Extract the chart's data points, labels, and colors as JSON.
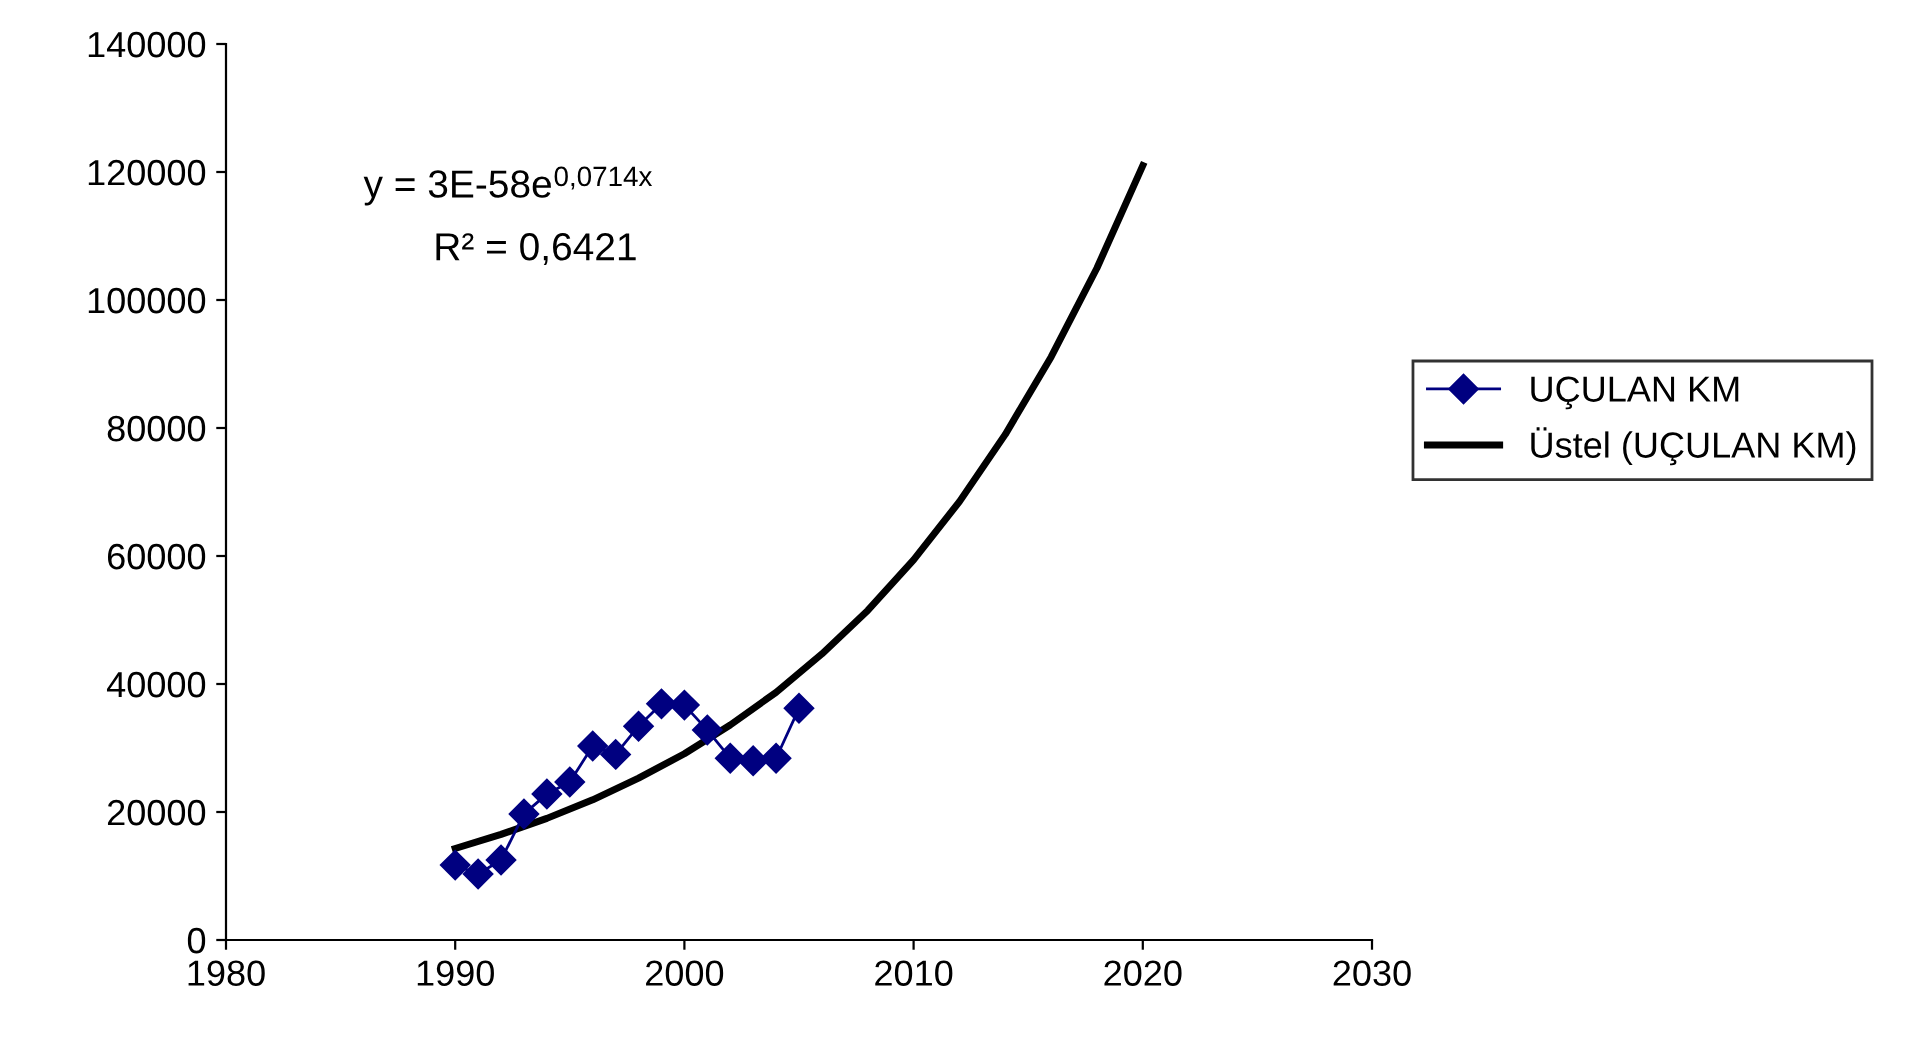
{
  "chart_data": {
    "type": "line",
    "x": [
      1990,
      1991,
      1992,
      1993,
      1994,
      1995,
      1996,
      1997,
      1998,
      1999,
      2000,
      2001,
      2002,
      2003,
      2004,
      2005
    ],
    "series": [
      {
        "name": "UÇULAN KM",
        "color": "#000080",
        "marker": "diamond",
        "values": [
          11700,
          10300,
          12500,
          19700,
          22800,
          24700,
          30300,
          29000,
          33400,
          36900,
          36700,
          32800,
          28400,
          28000,
          28400,
          36200
        ]
      },
      {
        "name": "Üstel (UÇULAN KM)",
        "color": "#000000",
        "marker": "none",
        "x": [
          1990,
          1992,
          1994,
          1996,
          1998,
          2000,
          2002,
          2004,
          2006,
          2008,
          2010,
          2012,
          2014,
          2016,
          2018,
          2020
        ],
        "values": [
          14300,
          16500,
          19000,
          21900,
          25300,
          29100,
          33600,
          38700,
          44700,
          51500,
          59400,
          68500,
          79000,
          91100,
          105000,
          121000
        ]
      }
    ],
    "xlim": [
      1980,
      2030
    ],
    "xticks": [
      1980,
      1990,
      2000,
      2010,
      2020,
      2030
    ],
    "ylim": [
      0,
      140000
    ],
    "yticks": [
      0,
      20000,
      40000,
      60000,
      80000,
      100000,
      120000,
      140000
    ],
    "grid": false,
    "legend": "right",
    "annotations": [
      "y = 3E-58e$^{0,0714x}$",
      "R² = 0,6421"
    ]
  }
}
